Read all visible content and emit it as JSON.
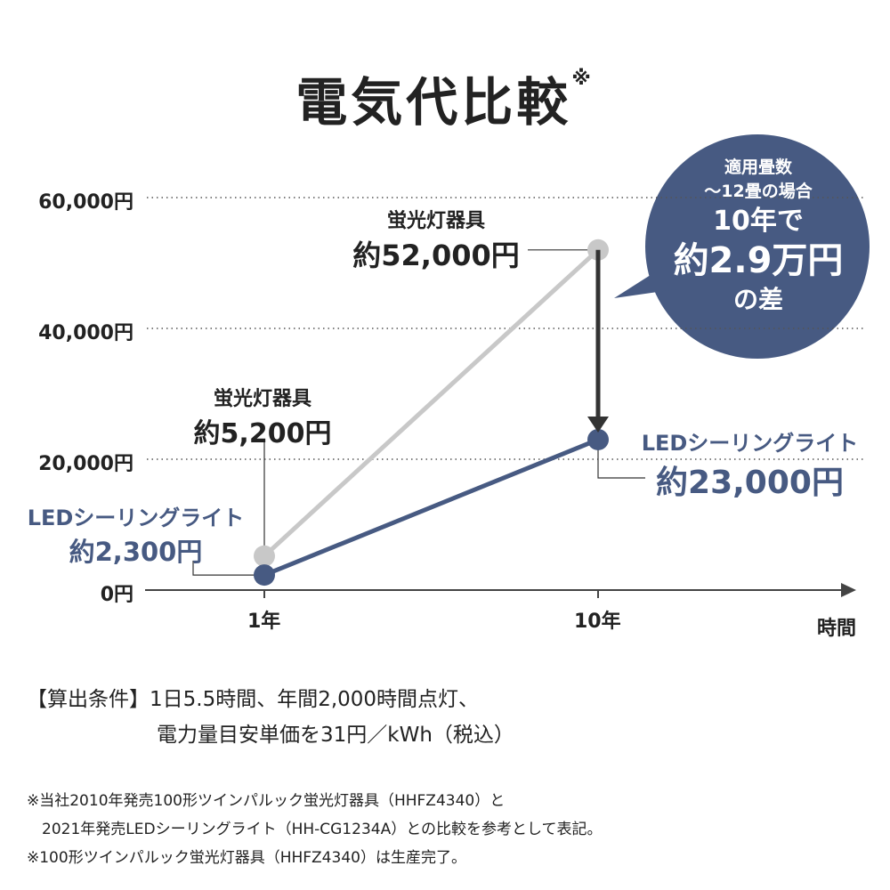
{
  "title": "電気代比較",
  "title_mark": "※",
  "chart_data": {
    "type": "line",
    "categories": [
      "1年",
      "10年"
    ],
    "xlabel": "時間",
    "ylabel": "",
    "ylim": [
      0,
      60000
    ],
    "yticks": [
      0,
      20000,
      40000,
      60000
    ],
    "ytick_labels": [
      "0円",
      "20,000円",
      "40,000円",
      "60,000円"
    ],
    "grid": true,
    "series": [
      {
        "name": "蛍光灯器具",
        "values": [
          5200,
          52000
        ],
        "color": "#c8c8c8"
      },
      {
        "name": "LEDシーリングライト",
        "values": [
          2300,
          23000
        ],
        "color": "#475a82"
      }
    ],
    "annotations": {
      "fl_1": {
        "name": "蛍光灯器具",
        "value": "約5,200円"
      },
      "fl_10": {
        "name": "蛍光灯器具",
        "value": "約52,000円"
      },
      "led_1": {
        "name": "LEDシーリングライト",
        "value": "約2,300円"
      },
      "led_10": {
        "name": "LEDシーリングライト",
        "value": "約23,000円"
      }
    }
  },
  "bubble": {
    "line1": "適用畳数",
    "line2": "〜12畳の場合",
    "line3": "10年で",
    "line4": "約2.9万円",
    "line5": "の差",
    "color": "#475a82"
  },
  "conditions": {
    "label": "【算出条件】",
    "line1": "1日5.5時間、年間2,000時間点灯、",
    "line2": "電力量目安単価を31円／kWh（税込）"
  },
  "notes": [
    "※当社2010年発売100形ツインパルック蛍光灯器具（HHFZ4340）と",
    "　2021年発売LEDシーリングライト（HH-CG1234A）との比較を参考として表記。",
    "※100形ツインパルック蛍光灯器具（HHFZ4340）は生産完了。"
  ]
}
